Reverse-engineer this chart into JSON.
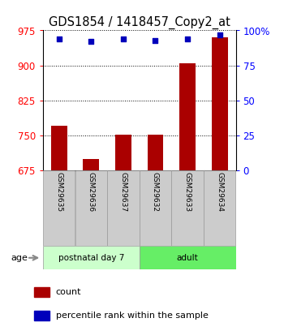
{
  "title": "GDS1854 / 1418457_Copy2_at",
  "samples": [
    "GSM29635",
    "GSM29636",
    "GSM29637",
    "GSM29632",
    "GSM29633",
    "GSM29634"
  ],
  "count_values": [
    770,
    700,
    752,
    752,
    905,
    960
  ],
  "percentile_values": [
    94,
    92,
    94,
    93,
    94,
    97
  ],
  "ylim_left": [
    675,
    975
  ],
  "ylim_right": [
    0,
    100
  ],
  "yticks_left": [
    675,
    750,
    825,
    900,
    975
  ],
  "yticks_right": [
    0,
    25,
    50,
    75,
    100
  ],
  "ytick_labels_right": [
    "0",
    "25",
    "50",
    "75",
    "100%"
  ],
  "bar_color": "#aa0000",
  "dot_color": "#0000bb",
  "groups": [
    {
      "label": "postnatal day 7",
      "start": 0,
      "end": 3,
      "color": "#ccffcc"
    },
    {
      "label": "adult",
      "start": 3,
      "end": 6,
      "color": "#66ee66"
    }
  ],
  "age_label": "age",
  "legend_count_label": "count",
  "legend_percentile_label": "percentile rank within the sample",
  "background_color": "#ffffff",
  "title_fontsize": 10.5,
  "tick_fontsize": 8.5,
  "sample_fontsize": 6.5
}
